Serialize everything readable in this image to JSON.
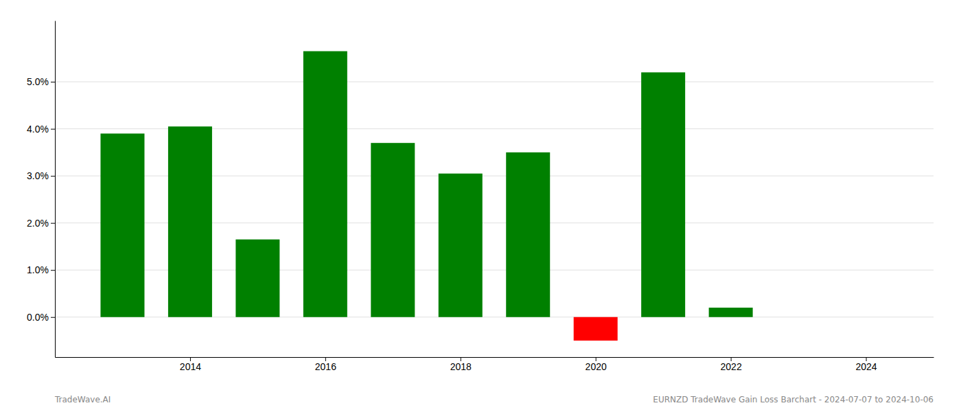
{
  "chart_data": {
    "type": "bar",
    "x": [
      2013,
      2014,
      2015,
      2016,
      2017,
      2018,
      2019,
      2020,
      2021,
      2022,
      2023
    ],
    "values": [
      0.039,
      0.0405,
      0.0165,
      0.0565,
      0.037,
      0.0305,
      0.035,
      -0.005,
      0.052,
      0.002,
      0.0
    ],
    "colors": [
      "#008000",
      "#008000",
      "#008000",
      "#008000",
      "#008000",
      "#008000",
      "#008000",
      "#ff0000",
      "#008000",
      "#008000",
      "#008000"
    ],
    "xlim": [
      2012.0,
      2025.0
    ],
    "xticks": [
      2014,
      2016,
      2018,
      2020,
      2022,
      2024
    ],
    "ylim": [
      -0.0085,
      0.063
    ],
    "yticks": [
      {
        "value": 0.0,
        "label": "0.0%"
      },
      {
        "value": 0.01,
        "label": "1.0%"
      },
      {
        "value": 0.02,
        "label": "2.0%"
      },
      {
        "value": 0.03,
        "label": "3.0%"
      },
      {
        "value": 0.04,
        "label": "4.0%"
      },
      {
        "value": 0.05,
        "label": "5.0%"
      }
    ],
    "grid": true,
    "annotations": [
      "TradeWave.AI",
      "EURNZD TradeWave Gain Loss Barchart - 2024-07-07 to 2024-10-06"
    ]
  }
}
